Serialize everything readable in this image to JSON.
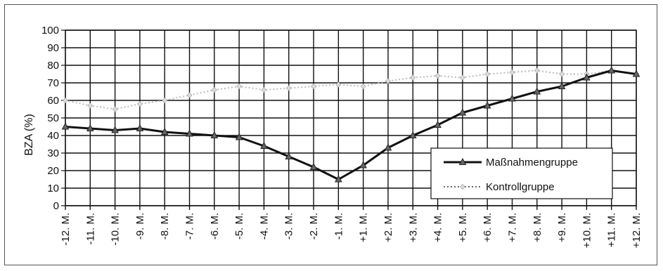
{
  "chart_data": {
    "type": "line",
    "title": "",
    "xlabel": "",
    "ylabel": "BZA (%)",
    "ylim": [
      0,
      100
    ],
    "yticks": [
      0,
      10,
      20,
      30,
      40,
      50,
      60,
      70,
      80,
      90,
      100
    ],
    "grid": true,
    "legend_position": "bottom-right",
    "categories": [
      "-12. M.",
      "-11. M.",
      "-10. M.",
      "-9. M.",
      "-8. M.",
      "-7. M.",
      "-6. M.",
      "-5. M.",
      "-4. M.",
      "-3. M.",
      "-2. M.",
      "-1. M.",
      "+1. M.",
      "+2. M.",
      "+3. M.",
      "+4. M.",
      "+5. M.",
      "+6. M.",
      "+7. M.",
      "+8. M.",
      "+9. M.",
      "+10. M.",
      "+11. M.",
      "+12. M."
    ],
    "series": [
      {
        "name": "Maßnahmengruppe",
        "style": "solid",
        "marker": "triangle",
        "color": "#111111",
        "values": [
          45,
          44,
          43,
          44,
          42,
          41,
          40,
          39,
          34,
          28,
          22,
          15,
          23,
          33,
          40,
          46,
          53,
          57,
          61,
          65,
          68,
          73,
          77,
          75
        ]
      },
      {
        "name": "Kontrollgruppe",
        "style": "dotted",
        "marker": "diamond",
        "color": "#bbbbbb",
        "values": [
          60,
          57,
          55,
          58,
          60,
          63,
          66,
          68,
          66,
          67,
          68,
          69,
          68,
          71,
          73,
          74,
          73,
          75,
          76,
          77,
          75,
          75,
          77,
          75
        ]
      }
    ]
  }
}
